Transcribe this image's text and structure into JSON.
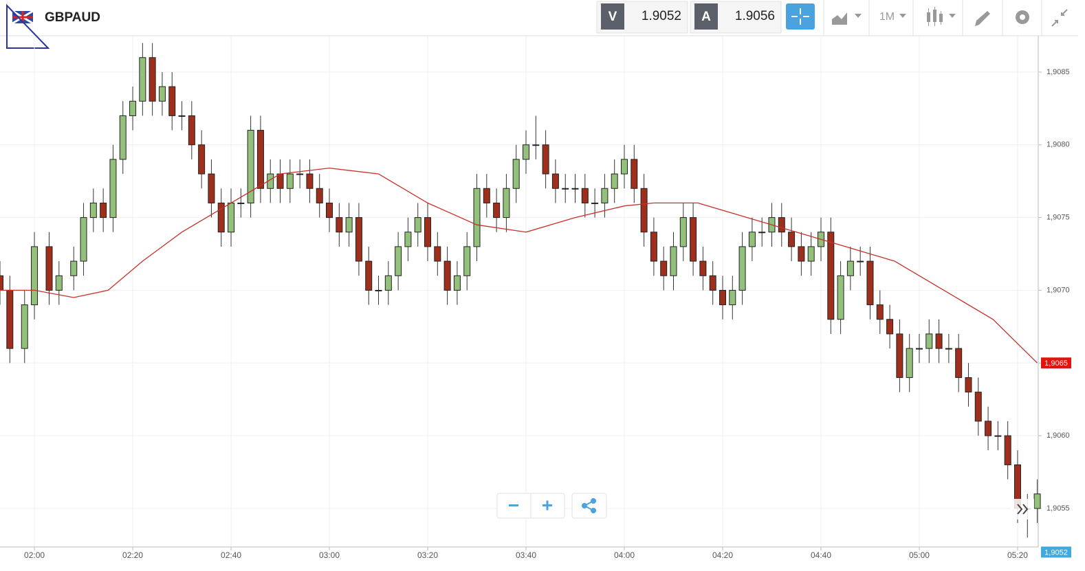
{
  "chart_data": {
    "type": "candlestick",
    "title": "GBPAUD",
    "interval": "1M",
    "bid": {
      "label": "V",
      "value": 1.9052
    },
    "ask": {
      "label": "A",
      "value": 1.9056
    },
    "xlim": [
      113,
      324.2
    ],
    "xticks": [
      {
        "value": 120,
        "label": "02:00"
      },
      {
        "value": 140,
        "label": "02:20"
      },
      {
        "value": 160,
        "label": "02:40"
      },
      {
        "value": 180,
        "label": "03:00"
      },
      {
        "value": 200,
        "label": "03:20"
      },
      {
        "value": 220,
        "label": "03:40"
      },
      {
        "value": 240,
        "label": "04:00"
      },
      {
        "value": 260,
        "label": "04:20"
      },
      {
        "value": 280,
        "label": "04:40"
      },
      {
        "value": 300,
        "label": "05:00"
      },
      {
        "value": 320,
        "label": "05:20"
      }
    ],
    "ylim": [
      1.90524,
      1.90875
    ],
    "yticks": [
      {
        "value": 1.9055,
        "label": "1,9055"
      },
      {
        "value": 1.906,
        "label": "1,9060"
      },
      {
        "value": 1.9065,
        "label": "1,9065"
      },
      {
        "value": 1.907,
        "label": "1,9070"
      },
      {
        "value": 1.9075,
        "label": "1,9075"
      },
      {
        "value": 1.908,
        "label": "1,9080"
      },
      {
        "value": 1.9085,
        "label": "1,9085"
      }
    ],
    "grid": true,
    "up_color": "#93c07a",
    "down_color": "#9e2f1c",
    "candles": {
      "x": [
        113,
        115,
        118,
        120,
        123,
        125,
        128,
        130,
        132,
        134,
        136,
        138,
        140,
        142,
        144,
        146,
        148,
        150,
        152,
        154,
        156,
        158,
        160,
        162,
        164,
        166,
        168,
        170,
        172,
        174,
        176,
        178,
        180,
        182,
        184,
        186,
        188,
        190,
        192,
        194,
        196,
        198,
        200,
        202,
        204,
        206,
        208,
        210,
        212,
        214,
        216,
        218,
        220,
        222,
        224,
        226,
        228,
        230,
        232,
        234,
        236,
        238,
        240,
        242,
        244,
        246,
        248,
        250,
        252,
        254,
        256,
        258,
        260,
        262,
        264,
        266,
        268,
        270,
        272,
        274,
        276,
        278,
        280,
        282,
        284,
        286,
        288,
        290,
        292,
        294,
        296,
        298,
        300,
        302,
        304,
        306,
        308,
        310,
        312,
        314,
        316,
        318,
        320,
        322,
        324
      ],
      "open": [
        1.9071,
        1.907,
        1.9066,
        1.9069,
        1.9073,
        1.907,
        1.9071,
        1.9072,
        1.9075,
        1.9076,
        1.9075,
        1.9079,
        1.9082,
        1.9083,
        1.9086,
        1.9083,
        1.9084,
        1.9082,
        1.9082,
        1.908,
        1.9078,
        1.9076,
        1.9074,
        1.9076,
        1.9076,
        1.9081,
        1.9077,
        1.9078,
        1.9077,
        1.9078,
        1.9078,
        1.9077,
        1.9076,
        1.9075,
        1.9074,
        1.9075,
        1.9072,
        1.907,
        1.907,
        1.9071,
        1.9073,
        1.9074,
        1.9075,
        1.9073,
        1.9072,
        1.907,
        1.9071,
        1.9073,
        1.9077,
        1.9076,
        1.9075,
        1.9077,
        1.9079,
        1.908,
        1.908,
        1.9078,
        1.9077,
        1.9077,
        1.9077,
        1.9076,
        1.9076,
        1.9077,
        1.9078,
        1.9079,
        1.9077,
        1.9074,
        1.9072,
        1.9071,
        1.9073,
        1.9075,
        1.9072,
        1.9071,
        1.907,
        1.9069,
        1.907,
        1.9073,
        1.9074,
        1.9074,
        1.9075,
        1.9074,
        1.9073,
        1.9072,
        1.9073,
        1.9074,
        1.9068,
        1.9071,
        1.9072,
        1.9072,
        1.9069,
        1.9068,
        1.9067,
        1.9064,
        1.9066,
        1.9066,
        1.9067,
        1.9066,
        1.9066,
        1.9064,
        1.9063,
        1.9061,
        1.906,
        1.906,
        1.9058,
        1.9055,
        1.9055
      ],
      "high": [
        1.9072,
        1.9071,
        1.907,
        1.9074,
        1.9074,
        1.9072,
        1.9073,
        1.9076,
        1.9077,
        1.9077,
        1.908,
        1.9083,
        1.9084,
        1.9087,
        1.9087,
        1.9085,
        1.9085,
        1.9083,
        1.9083,
        1.9081,
        1.9079,
        1.9077,
        1.9077,
        1.9077,
        1.9082,
        1.9082,
        1.9079,
        1.9079,
        1.9079,
        1.9079,
        1.9079,
        1.9078,
        1.9077,
        1.9076,
        1.9076,
        1.9076,
        1.9073,
        1.9071,
        1.9072,
        1.9074,
        1.9075,
        1.9076,
        1.9076,
        1.9074,
        1.9073,
        1.9072,
        1.9074,
        1.9078,
        1.9078,
        1.9077,
        1.9078,
        1.908,
        1.9081,
        1.9082,
        1.9081,
        1.9079,
        1.9078,
        1.9078,
        1.9078,
        1.9077,
        1.9078,
        1.9079,
        1.908,
        1.908,
        1.9078,
        1.9075,
        1.9073,
        1.9074,
        1.9076,
        1.9076,
        1.9073,
        1.9072,
        1.9071,
        1.9071,
        1.9074,
        1.9075,
        1.9075,
        1.9076,
        1.9076,
        1.9075,
        1.9074,
        1.9074,
        1.9075,
        1.9075,
        1.9072,
        1.9073,
        1.9073,
        1.9073,
        1.907,
        1.9069,
        1.9068,
        1.9067,
        1.9067,
        1.9068,
        1.9068,
        1.9067,
        1.9067,
        1.9065,
        1.9064,
        1.9062,
        1.9061,
        1.9061,
        1.9059,
        1.9056,
        1.9057
      ],
      "low": [
        1.9069,
        1.9065,
        1.9065,
        1.9068,
        1.9069,
        1.9069,
        1.907,
        1.9071,
        1.9074,
        1.9074,
        1.9074,
        1.9078,
        1.9081,
        1.9082,
        1.9082,
        1.9082,
        1.9081,
        1.9081,
        1.9079,
        1.9077,
        1.9075,
        1.9073,
        1.9073,
        1.9075,
        1.9075,
        1.9076,
        1.9076,
        1.9076,
        1.9076,
        1.9077,
        1.9076,
        1.9075,
        1.9074,
        1.9073,
        1.9073,
        1.9071,
        1.9069,
        1.9069,
        1.9069,
        1.907,
        1.9072,
        1.9073,
        1.9072,
        1.9071,
        1.9069,
        1.9069,
        1.907,
        1.9072,
        1.9075,
        1.9074,
        1.9074,
        1.9076,
        1.9078,
        1.9079,
        1.9077,
        1.9076,
        1.9076,
        1.9076,
        1.9075,
        1.9075,
        1.9075,
        1.9076,
        1.9077,
        1.9076,
        1.9073,
        1.9071,
        1.907,
        1.907,
        1.9072,
        1.9071,
        1.907,
        1.9069,
        1.9068,
        1.9068,
        1.9069,
        1.9072,
        1.9073,
        1.9073,
        1.9073,
        1.9072,
        1.9071,
        1.9071,
        1.9072,
        1.9067,
        1.9067,
        1.907,
        1.9071,
        1.9068,
        1.9067,
        1.9066,
        1.9063,
        1.9063,
        1.9065,
        1.9065,
        1.9065,
        1.9065,
        1.9063,
        1.9062,
        1.906,
        1.9059,
        1.9059,
        1.9057,
        1.9054,
        1.9053,
        1.9054
      ],
      "close": [
        1.907,
        1.9066,
        1.9069,
        1.9073,
        1.907,
        1.9071,
        1.9072,
        1.9075,
        1.9076,
        1.9075,
        1.9079,
        1.9082,
        1.9083,
        1.9086,
        1.9083,
        1.9084,
        1.9082,
        1.9082,
        1.908,
        1.9078,
        1.9076,
        1.9074,
        1.9076,
        1.9076,
        1.9081,
        1.9077,
        1.9078,
        1.9077,
        1.9078,
        1.9078,
        1.9077,
        1.9076,
        1.9075,
        1.9074,
        1.9075,
        1.9072,
        1.907,
        1.907,
        1.9071,
        1.9073,
        1.9074,
        1.9075,
        1.9073,
        1.9072,
        1.907,
        1.9071,
        1.9073,
        1.9077,
        1.9076,
        1.9075,
        1.9077,
        1.9079,
        1.908,
        1.908,
        1.9078,
        1.9077,
        1.9077,
        1.9077,
        1.9076,
        1.9076,
        1.9077,
        1.9078,
        1.9079,
        1.9077,
        1.9074,
        1.9072,
        1.9071,
        1.9073,
        1.9075,
        1.9072,
        1.9071,
        1.907,
        1.9069,
        1.907,
        1.9073,
        1.9074,
        1.9074,
        1.9075,
        1.9074,
        1.9073,
        1.9072,
        1.9073,
        1.9074,
        1.9068,
        1.9071,
        1.9072,
        1.9072,
        1.9069,
        1.9068,
        1.9067,
        1.9064,
        1.9066,
        1.9066,
        1.9067,
        1.9066,
        1.9066,
        1.9064,
        1.9063,
        1.9061,
        1.906,
        1.906,
        1.9058,
        1.9055,
        1.9055,
        1.9056
      ]
    },
    "moving_average": {
      "color": "#c8302a",
      "x": [
        113,
        120,
        128,
        135,
        142,
        150,
        160,
        170,
        180,
        190,
        200,
        210,
        220,
        230,
        240,
        246,
        255,
        265,
        275,
        285,
        295,
        305,
        315,
        324
      ],
      "values": [
        1.907,
        1.907,
        1.90695,
        1.907,
        1.9072,
        1.9074,
        1.9076,
        1.9078,
        1.90784,
        1.9078,
        1.9076,
        1.90745,
        1.9074,
        1.9075,
        1.90758,
        1.9076,
        1.9076,
        1.9075,
        1.9074,
        1.9073,
        1.9072,
        1.907,
        1.9068,
        1.9065
      ]
    },
    "price_markers": [
      {
        "value": 1.9065,
        "label": "1,9065",
        "color": "#e3120b"
      },
      {
        "value": 1.9052,
        "label": "1,9052",
        "color": "#3fa9e0"
      }
    ]
  }
}
